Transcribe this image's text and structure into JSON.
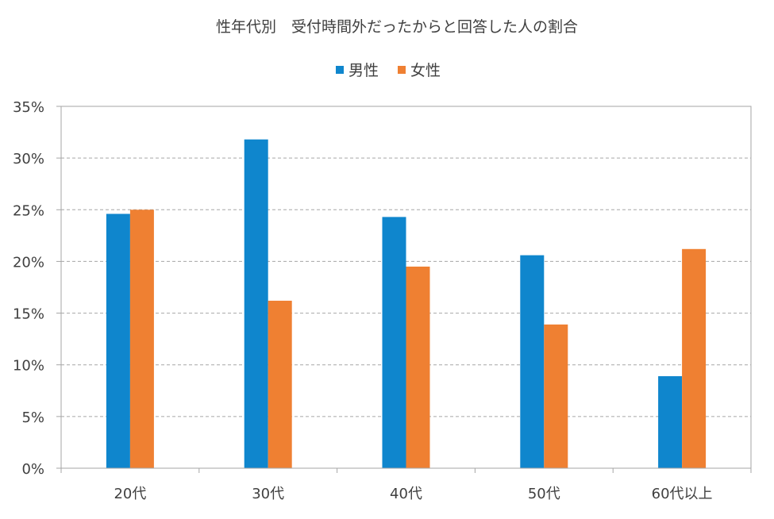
{
  "chart_data": {
    "type": "bar",
    "title": "性年代別　受付時間外だったからと回答した人の割合",
    "xlabel": "",
    "ylabel": "",
    "categories": [
      "20代",
      "30代",
      "40代",
      "50代",
      "60代以上"
    ],
    "series": [
      {
        "name": "男性",
        "color": "#0f86cd",
        "values": [
          0.246,
          0.318,
          0.243,
          0.206,
          0.089
        ]
      },
      {
        "name": "女性",
        "color": "#ef8032",
        "values": [
          0.25,
          0.162,
          0.195,
          0.139,
          0.212
        ]
      }
    ],
    "ylim": [
      0,
      0.35
    ],
    "yticks": [
      0,
      0.05,
      0.1,
      0.15,
      0.2,
      0.25,
      0.3,
      0.35
    ],
    "ytick_labels": [
      "0%",
      "5%",
      "10%",
      "15%",
      "20%",
      "25%",
      "30%",
      "35%"
    ],
    "grid": true,
    "legend_position": "top-center"
  }
}
